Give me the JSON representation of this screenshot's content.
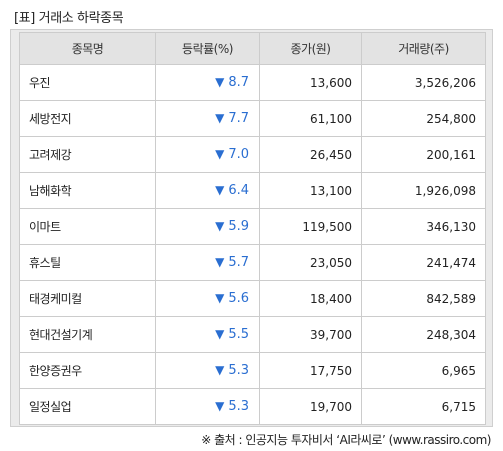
{
  "title": "[표] 거래소 하락종목",
  "table": {
    "columns": [
      "종목명",
      "등락률(%)",
      "종가(원)",
      "거래량(주)"
    ],
    "rows": [
      {
        "name": "우진",
        "arrow": "▼",
        "rate": "8.7",
        "close": "13,600",
        "volume": "3,526,206"
      },
      {
        "name": "세방전지",
        "arrow": "▼",
        "rate": "7.7",
        "close": "61,100",
        "volume": "254,800"
      },
      {
        "name": "고려제강",
        "arrow": "▼",
        "rate": "7.0",
        "close": "26,450",
        "volume": "200,161"
      },
      {
        "name": "남해화학",
        "arrow": "▼",
        "rate": "6.4",
        "close": "13,100",
        "volume": "1,926,098"
      },
      {
        "name": "이마트",
        "arrow": "▼",
        "rate": "5.9",
        "close": "119,500",
        "volume": "346,130"
      },
      {
        "name": "휴스틸",
        "arrow": "▼",
        "rate": "5.7",
        "close": "23,050",
        "volume": "241,474"
      },
      {
        "name": "태경케미컬",
        "arrow": "▼",
        "rate": "5.6",
        "close": "18,400",
        "volume": "842,589"
      },
      {
        "name": "현대건설기계",
        "arrow": "▼",
        "rate": "5.5",
        "close": "39,700",
        "volume": "248,304"
      },
      {
        "name": "한양증권우",
        "arrow": "▼",
        "rate": "5.3",
        "close": "17,750",
        "volume": "6,965"
      },
      {
        "name": "일정실업",
        "arrow": "▼",
        "rate": "5.3",
        "close": "19,700",
        "volume": "6,715"
      }
    ]
  },
  "source": "※ 출처 : 인공지능 투자비서 ‘AI라씨로’ (www.rassiro.com)",
  "colors": {
    "down_arrow": "#2a6ed1",
    "header_bg": "#e3e3e3",
    "frame_bg": "#ebebeb"
  }
}
